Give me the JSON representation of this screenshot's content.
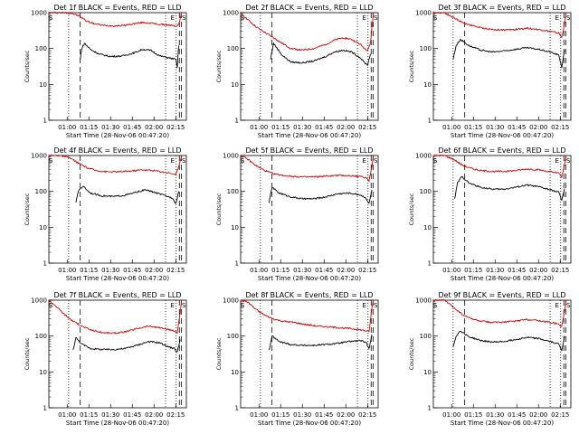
{
  "figure": {
    "background": "#ffffff"
  },
  "style": {
    "events_color": "#000000",
    "lld_color": "#d40000",
    "axis_color": "#000000"
  },
  "chart_data": [
    {
      "type": "line",
      "title": "Det 1f BLACK = Events, RED = LLD",
      "xlabel": "Start Time (28-Nov-06 00:47:20)",
      "ylabel": "Counts/sec",
      "yscale": "log",
      "ylim": [
        1,
        1000
      ],
      "x_tick_labels": [
        "01:00",
        "01:15",
        "01:30",
        "01:45",
        "02:00",
        "02:15"
      ],
      "y_tick_labels": [
        "1",
        "10",
        "100",
        "1000"
      ],
      "markers": [
        "S",
        "E",
        "S"
      ],
      "series": [
        {
          "name": "LLD",
          "color": "#d40000",
          "x": [
            "00:47",
            "00:52",
            "00:58",
            "01:03",
            "01:08",
            "01:13",
            "01:18",
            "01:25",
            "01:32",
            "01:39",
            "01:46",
            "01:52",
            "01:58",
            "02:04",
            "02:10",
            "02:15",
            "02:17",
            "02:19"
          ],
          "y": [
            1000,
            1000,
            1000,
            960,
            820,
            600,
            500,
            440,
            430,
            440,
            490,
            530,
            510,
            470,
            450,
            420,
            460,
            1000
          ]
        },
        {
          "name": "Events",
          "color": "#000000",
          "x": [
            "01:09",
            "01:10",
            "01:12",
            "01:16",
            "01:22",
            "01:30",
            "01:38",
            "01:46",
            "01:52",
            "01:58",
            "02:04",
            "02:10",
            "02:15",
            "02:16",
            "02:17"
          ],
          "y": [
            50,
            100,
            140,
            95,
            70,
            60,
            62,
            75,
            95,
            88,
            62,
            55,
            50,
            30,
            120
          ]
        }
      ]
    },
    {
      "type": "line",
      "title": "Det 2f BLACK = Events, RED = LLD",
      "xlabel": "Start Time (28-Nov-06 00:47:20)",
      "ylabel": "Counts/sec",
      "yscale": "log",
      "ylim": [
        1,
        1000
      ],
      "x_tick_labels": [
        "01:00",
        "01:15",
        "01:30",
        "01:45",
        "02:00",
        "02:15"
      ],
      "y_tick_labels": [
        "1",
        "10",
        "100",
        "1000"
      ],
      "markers": [
        "S",
        "E",
        "S"
      ],
      "series": [
        {
          "name": "LLD",
          "color": "#d40000",
          "x": [
            "00:47",
            "00:52",
            "00:58",
            "01:04",
            "01:10",
            "01:16",
            "01:22",
            "01:30",
            "01:38",
            "01:46",
            "01:52",
            "01:58",
            "02:04",
            "02:10",
            "02:13",
            "02:15",
            "02:17",
            "02:19"
          ],
          "y": [
            1000,
            650,
            400,
            280,
            200,
            140,
            100,
            90,
            100,
            130,
            170,
            200,
            180,
            130,
            100,
            90,
            140,
            1000
          ]
        },
        {
          "name": "Events",
          "color": "#000000",
          "x": [
            "01:08",
            "01:10",
            "01:16",
            "01:22",
            "01:30",
            "01:38",
            "01:46",
            "01:52",
            "01:58",
            "02:04",
            "02:10",
            "02:13",
            "02:15",
            "02:17"
          ],
          "y": [
            50,
            140,
            65,
            42,
            40,
            45,
            60,
            80,
            90,
            80,
            55,
            40,
            35,
            70
          ]
        }
      ]
    },
    {
      "type": "line",
      "title": "Det 3f BLACK = Events, RED = LLD",
      "xlabel": "Start Time (28-Nov-06 00:47:20)",
      "ylabel": "Counts/sec",
      "yscale": "log",
      "ylim": [
        1,
        1000
      ],
      "x_tick_labels": [
        "01:00",
        "01:15",
        "01:30",
        "01:45",
        "02:00",
        "02:15"
      ],
      "y_tick_labels": [
        "1",
        "10",
        "100",
        "1000"
      ],
      "markers": [
        "S",
        "E",
        "S"
      ],
      "series": [
        {
          "name": "LLD",
          "color": "#d40000",
          "x": [
            "00:47",
            "00:55",
            "01:02",
            "01:08",
            "01:14",
            "01:20",
            "01:28",
            "01:36",
            "01:44",
            "01:52",
            "02:00",
            "02:08",
            "02:14",
            "02:16",
            "02:18",
            "02:19"
          ],
          "y": [
            1000,
            1000,
            700,
            520,
            440,
            380,
            340,
            330,
            340,
            370,
            340,
            300,
            270,
            200,
            500,
            1000
          ]
        },
        {
          "name": "Events",
          "color": "#000000",
          "x": [
            "01:01",
            "01:03",
            "01:06",
            "01:12",
            "01:20",
            "01:28",
            "01:36",
            "01:44",
            "01:52",
            "02:00",
            "02:08",
            "02:14",
            "02:16",
            "02:18"
          ],
          "y": [
            50,
            120,
            180,
            120,
            90,
            80,
            85,
            95,
            105,
            95,
            80,
            65,
            30,
            90
          ]
        }
      ]
    },
    {
      "type": "line",
      "title": "Det 4f BLACK = Events, RED = LLD",
      "xlabel": "Start Time (28-Nov-06 00:47:20)",
      "ylabel": "Counts/sec",
      "yscale": "log",
      "ylim": [
        1,
        1000
      ],
      "x_tick_labels": [
        "01:00",
        "01:15",
        "01:30",
        "01:45",
        "02:00",
        "02:15"
      ],
      "y_tick_labels": [
        "1",
        "10",
        "100",
        "1000"
      ],
      "markers": [
        "S",
        "E",
        "S"
      ],
      "series": [
        {
          "name": "LLD",
          "color": "#d40000",
          "x": [
            "00:47",
            "00:55",
            "01:02",
            "01:08",
            "01:14",
            "01:20",
            "01:28",
            "01:36",
            "01:44",
            "01:52",
            "02:00",
            "02:08",
            "02:13",
            "02:15",
            "02:17",
            "02:19"
          ],
          "y": [
            1000,
            1000,
            850,
            600,
            450,
            380,
            350,
            350,
            370,
            400,
            380,
            340,
            310,
            280,
            500,
            1000
          ]
        },
        {
          "name": "Events",
          "color": "#000000",
          "x": [
            "01:06",
            "01:08",
            "01:11",
            "01:16",
            "01:24",
            "01:32",
            "01:40",
            "01:48",
            "01:54",
            "02:00",
            "02:08",
            "02:13",
            "02:15",
            "02:17"
          ],
          "y": [
            50,
            110,
            140,
            90,
            75,
            72,
            78,
            95,
            110,
            95,
            75,
            65,
            45,
            100
          ]
        }
      ]
    },
    {
      "type": "line",
      "title": "Det 5f BLACK = Events, RED = LLD",
      "xlabel": "Start Time (28-Nov-06 00:47:20)",
      "ylabel": "Counts/sec",
      "yscale": "log",
      "ylim": [
        1,
        1000
      ],
      "x_tick_labels": [
        "01:00",
        "01:15",
        "01:30",
        "01:45",
        "02:00",
        "02:15"
      ],
      "y_tick_labels": [
        "1",
        "10",
        "100",
        "1000"
      ],
      "markers": [
        "S",
        "E",
        "S"
      ],
      "series": [
        {
          "name": "LLD",
          "color": "#d40000",
          "x": [
            "00:47",
            "00:52",
            "00:58",
            "01:04",
            "01:10",
            "01:16",
            "01:24",
            "01:32",
            "01:40",
            "01:48",
            "01:56",
            "02:04",
            "02:10",
            "02:14",
            "02:16",
            "02:18",
            "02:19"
          ],
          "y": [
            1000,
            800,
            520,
            380,
            310,
            280,
            260,
            250,
            255,
            270,
            280,
            270,
            260,
            240,
            200,
            500,
            1000
          ]
        },
        {
          "name": "Events",
          "color": "#000000",
          "x": [
            "01:07",
            "01:09",
            "01:14",
            "01:22",
            "01:30",
            "01:38",
            "01:46",
            "01:54",
            "02:02",
            "02:10",
            "02:14",
            "02:16",
            "02:18"
          ],
          "y": [
            50,
            130,
            90,
            70,
            62,
            62,
            70,
            85,
            90,
            80,
            65,
            45,
            110
          ]
        }
      ]
    },
    {
      "type": "line",
      "title": "Det 6f BLACK = Events, RED = LLD",
      "xlabel": "Start Time (28-Nov-06 00:47:20)",
      "ylabel": "Counts/sec",
      "yscale": "log",
      "ylim": [
        1,
        1000
      ],
      "x_tick_labels": [
        "01:00",
        "01:15",
        "01:30",
        "01:45",
        "02:00",
        "02:15"
      ],
      "y_tick_labels": [
        "1",
        "10",
        "100",
        "1000"
      ],
      "markers": [
        "S",
        "E",
        "S"
      ],
      "series": [
        {
          "name": "LLD",
          "color": "#d40000",
          "x": [
            "00:47",
            "00:55",
            "01:02",
            "01:08",
            "01:14",
            "01:20",
            "01:28",
            "01:36",
            "01:44",
            "01:52",
            "02:00",
            "02:08",
            "02:14",
            "02:16",
            "02:18",
            "02:19"
          ],
          "y": [
            1000,
            1000,
            750,
            520,
            430,
            380,
            360,
            360,
            380,
            420,
            400,
            350,
            320,
            250,
            550,
            1000
          ]
        },
        {
          "name": "Events",
          "color": "#000000",
          "x": [
            "01:02",
            "01:04",
            "01:07",
            "01:12",
            "01:20",
            "01:28",
            "01:36",
            "01:44",
            "01:52",
            "02:00",
            "02:08",
            "02:14",
            "02:16",
            "02:18"
          ],
          "y": [
            60,
            170,
            260,
            170,
            130,
            115,
            115,
            130,
            150,
            135,
            110,
            95,
            55,
            120
          ]
        }
      ]
    },
    {
      "type": "line",
      "title": "Det 7f BLACK = Events, RED = LLD",
      "xlabel": "Start Time (28-Nov-06 00:47:20)",
      "ylabel": "Counts/sec",
      "yscale": "log",
      "ylim": [
        1,
        1000
      ],
      "x_tick_labels": [
        "01:00",
        "01:15",
        "01:30",
        "01:45",
        "02:00",
        "02:15"
      ],
      "y_tick_labels": [
        "1",
        "10",
        "100",
        "1000"
      ],
      "markers": [
        "S",
        "E",
        "S"
      ],
      "series": [
        {
          "name": "LLD",
          "color": "#d40000",
          "x": [
            "00:47",
            "00:52",
            "00:58",
            "01:04",
            "01:10",
            "01:16",
            "01:24",
            "01:32",
            "01:40",
            "01:48",
            "01:56",
            "02:04",
            "02:10",
            "02:14",
            "02:16",
            "02:18",
            "02:19"
          ],
          "y": [
            1000,
            700,
            400,
            260,
            190,
            150,
            125,
            120,
            130,
            160,
            190,
            170,
            150,
            140,
            120,
            450,
            1000
          ]
        },
        {
          "name": "Events",
          "color": "#000000",
          "x": [
            "01:04",
            "01:06",
            "01:10",
            "01:16",
            "01:24",
            "01:32",
            "01:40",
            "01:48",
            "01:56",
            "02:04",
            "02:10",
            "02:14",
            "02:16",
            "02:18"
          ],
          "y": [
            40,
            90,
            60,
            45,
            42,
            42,
            45,
            55,
            70,
            65,
            50,
            45,
            35,
            80
          ]
        }
      ]
    },
    {
      "type": "line",
      "title": "Det 8f BLACK = Events, RED = LLD",
      "xlabel": "Start Time (28-Nov-06 00:47:20)",
      "ylabel": "Counts/sec",
      "yscale": "log",
      "ylim": [
        1,
        1000
      ],
      "x_tick_labels": [
        "01:00",
        "01:15",
        "01:30",
        "01:45",
        "02:00",
        "02:15"
      ],
      "y_tick_labels": [
        "1",
        "10",
        "100",
        "1000"
      ],
      "markers": [
        "S",
        "E",
        "S"
      ],
      "series": [
        {
          "name": "LLD",
          "color": "#d40000",
          "x": [
            "00:47",
            "00:52",
            "00:58",
            "01:04",
            "01:10",
            "01:16",
            "01:24",
            "01:32",
            "01:40",
            "01:48",
            "01:56",
            "02:04",
            "02:10",
            "02:14",
            "02:16",
            "02:18",
            "02:19"
          ],
          "y": [
            1000,
            900,
            550,
            380,
            300,
            260,
            240,
            210,
            190,
            180,
            170,
            160,
            150,
            140,
            130,
            600,
            1000
          ]
        },
        {
          "name": "Events",
          "color": "#000000",
          "x": [
            "01:07",
            "01:09",
            "01:14",
            "01:22",
            "01:30",
            "01:38",
            "01:46",
            "01:54",
            "02:02",
            "02:10",
            "02:14",
            "02:16",
            "02:18"
          ],
          "y": [
            40,
            100,
            70,
            58,
            55,
            55,
            58,
            62,
            70,
            75,
            65,
            45,
            110
          ]
        }
      ]
    },
    {
      "type": "line",
      "title": "Det 9f BLACK = Events, RED = LLD",
      "xlabel": "Start Time (28-Nov-06 00:47:20)",
      "ylabel": "Counts/sec",
      "yscale": "log",
      "ylim": [
        1,
        1000
      ],
      "x_tick_labels": [
        "01:00",
        "01:15",
        "01:30",
        "01:45",
        "02:00",
        "02:15"
      ],
      "y_tick_labels": [
        "1",
        "10",
        "100",
        "1000"
      ],
      "markers": [
        "S",
        "E",
        "S"
      ],
      "series": [
        {
          "name": "LLD",
          "color": "#d40000",
          "x": [
            "00:47",
            "00:55",
            "01:02",
            "01:08",
            "01:14",
            "01:20",
            "01:28",
            "01:36",
            "01:44",
            "01:52",
            "02:00",
            "02:08",
            "02:14",
            "02:16",
            "02:18",
            "02:19"
          ],
          "y": [
            1000,
            1000,
            600,
            380,
            300,
            260,
            240,
            245,
            260,
            290,
            270,
            240,
            220,
            180,
            500,
            1000
          ]
        },
        {
          "name": "Events",
          "color": "#000000",
          "x": [
            "01:01",
            "01:03",
            "01:06",
            "01:12",
            "01:20",
            "01:28",
            "01:36",
            "01:44",
            "01:52",
            "02:00",
            "02:08",
            "02:14",
            "02:16",
            "02:18"
          ],
          "y": [
            50,
            100,
            140,
            95,
            75,
            68,
            70,
            80,
            92,
            85,
            70,
            60,
            40,
            100
          ]
        }
      ]
    }
  ]
}
